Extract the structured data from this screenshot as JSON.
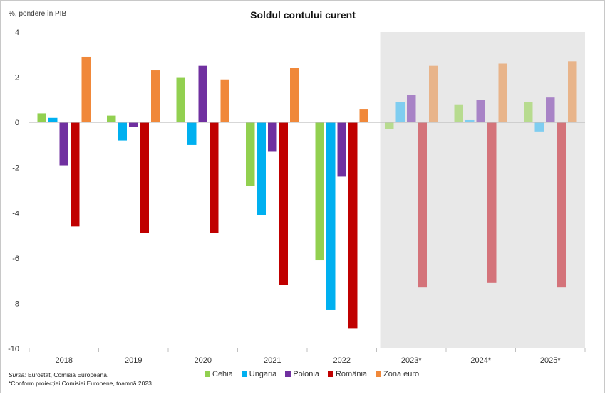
{
  "chart_data": {
    "type": "bar",
    "title": "Soldul contului curent",
    "ylabel": "%, pondere în PIB",
    "categories": [
      "2018",
      "2019",
      "2020",
      "2021",
      "2022",
      "2023*",
      "2024*",
      "2025*"
    ],
    "ylim": [
      -10,
      4
    ],
    "yticks": [
      4,
      2,
      0,
      -2,
      -4,
      -6,
      -8,
      -10
    ],
    "grid": false,
    "legend_position": "bottom",
    "forecast_region": [
      "2023*",
      "2024*",
      "2025*"
    ],
    "forecast_shading_color": "#e8e8e8",
    "series": [
      {
        "name": "Cehia",
        "color": "#92d050",
        "forecast_color": "#b7db8f",
        "values": [
          0.4,
          0.3,
          2.0,
          -2.8,
          -6.1,
          -0.3,
          0.8,
          0.9
        ]
      },
      {
        "name": "Ungaria",
        "color": "#00b0f0",
        "forecast_color": "#7fcdf0",
        "values": [
          0.2,
          -0.8,
          -1.0,
          -4.1,
          -8.3,
          0.9,
          0.1,
          -0.4
        ]
      },
      {
        "name": "Polonia",
        "color": "#7030a0",
        "forecast_color": "#a883c6",
        "values": [
          -1.9,
          -0.2,
          2.5,
          -1.3,
          -2.4,
          1.2,
          1.0,
          1.1
        ]
      },
      {
        "name": "România",
        "color": "#c00000",
        "forecast_color": "#d4737a",
        "values": [
          -4.6,
          -4.9,
          -4.9,
          -7.2,
          -9.1,
          -7.3,
          -7.1,
          -7.3
        ]
      },
      {
        "name": "Zona euro",
        "color": "#f0883a",
        "forecast_color": "#e8b48a",
        "values": [
          2.9,
          2.3,
          1.9,
          2.4,
          0.6,
          2.5,
          2.6,
          2.7
        ]
      }
    ]
  },
  "notes": {
    "source_label": "Sursa:",
    "source_text": " Eurostat, Comisia Europeană.",
    "footnote": "*Conform proiecției Comisiei Europene, toamnă 2023."
  }
}
